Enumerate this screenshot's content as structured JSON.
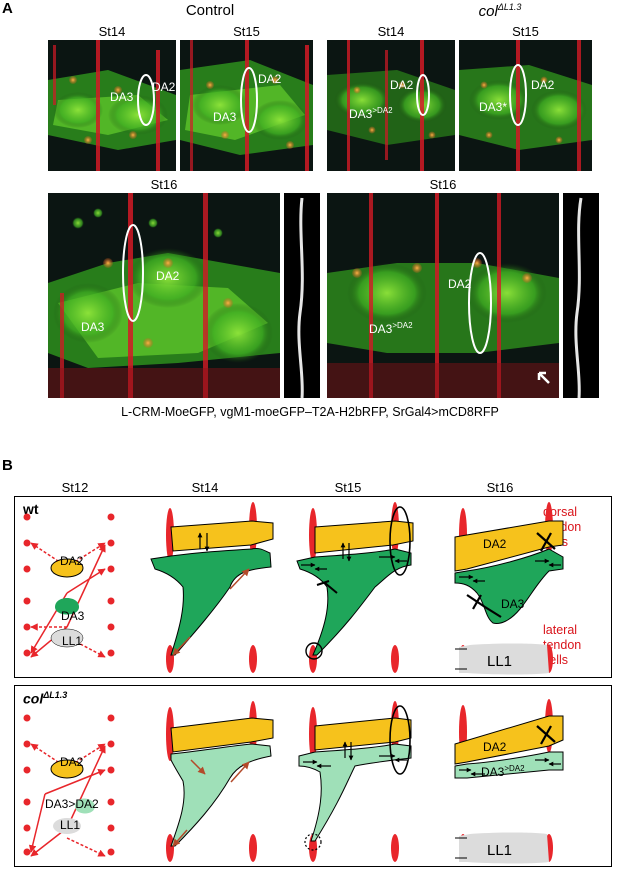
{
  "panel_a": {
    "letter": "A",
    "control_title": "Control",
    "mutant_title": "col",
    "mutant_superscript": "ΔL1.3",
    "stages": {
      "st14": "St14",
      "st15": "St15",
      "st16": "St16"
    },
    "labels": {
      "da2": "DA2",
      "da3": "DA3",
      "da3_sup_prefix": "DA3",
      "da3_sup": ">DA2",
      "da3_star": "DA3*"
    },
    "caption": "L-CRM-MoeGFP, vgM1-moeGFP–T2A-H2bRFP, SrGal4>mCD8RFP"
  },
  "panel_b": {
    "letter": "B",
    "stages": [
      "St12",
      "St14",
      "St15",
      "St16"
    ],
    "wt_label": "wt",
    "mutant_label": "col",
    "mutant_superscript": "ΔL1.3",
    "dorsal_label": [
      "dorsal",
      "tendon",
      "cells"
    ],
    "lateral_label": [
      "lateral",
      "tendon",
      "cells"
    ],
    "cells": {
      "da2": "DA2",
      "da3": "DA3",
      "ll1": "LL1",
      "da3_to_da2": "DA3>DA2",
      "da3_prefix": "DA3",
      "da3_sup": ">DA2"
    },
    "colors": {
      "da2": "#f6c21c",
      "da3_wt": "#1fa65a",
      "da3_mut": "#9fe0b8",
      "tendon": "#e8262b",
      "ll1": "#dcdcdc"
    }
  }
}
